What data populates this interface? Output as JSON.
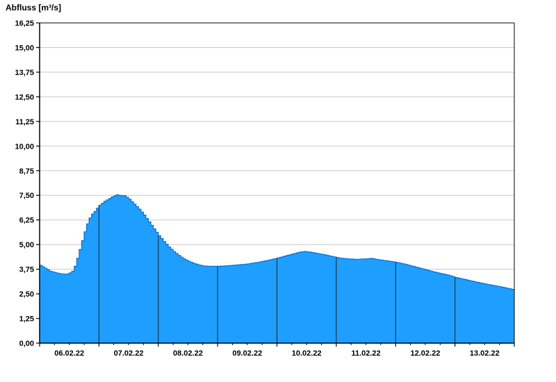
{
  "title": "Abfluss [m³/s]",
  "chart_data": {
    "type": "area",
    "title": "Abfluss [m³/s]",
    "ylabel": "Abfluss [m³/s]",
    "xlabel": "",
    "ylim": [
      0,
      16.25
    ],
    "ytick_step": 1.25,
    "grid": true,
    "legend": "none",
    "x_unit": "hours-from-2022-02-06T00:00",
    "xlim": [
      0,
      192
    ],
    "day_boundary_step_hours": 24,
    "x_day_labels": [
      "06.02.22",
      "07.02.22",
      "08.02.22",
      "09.02.22",
      "10.02.22",
      "11.02.22",
      "12.02.22",
      "13.02.22"
    ],
    "series": [
      {
        "name": "Abfluss",
        "points": [
          [
            0,
            3.95
          ],
          [
            2,
            3.8
          ],
          [
            4,
            3.65
          ],
          [
            6,
            3.58
          ],
          [
            8,
            3.52
          ],
          [
            10,
            3.5
          ],
          [
            11.5,
            3.52
          ],
          [
            13,
            3.65
          ],
          [
            14,
            3.9
          ],
          [
            15,
            4.3
          ],
          [
            16,
            4.75
          ],
          [
            17,
            5.2
          ],
          [
            18,
            5.65
          ],
          [
            19,
            6.05
          ],
          [
            20,
            6.35
          ],
          [
            21,
            6.55
          ],
          [
            22,
            6.68
          ],
          [
            23,
            6.85
          ],
          [
            24,
            7.0
          ],
          [
            25,
            7.1
          ],
          [
            26,
            7.2
          ],
          [
            27.5,
            7.3
          ],
          [
            29,
            7.42
          ],
          [
            30.5,
            7.5
          ],
          [
            31.5,
            7.55
          ],
          [
            32.5,
            7.45
          ],
          [
            33.5,
            7.52
          ],
          [
            34.5,
            7.45
          ],
          [
            36,
            7.3
          ],
          [
            38,
            7.05
          ],
          [
            40,
            6.8
          ],
          [
            42,
            6.5
          ],
          [
            44,
            6.15
          ],
          [
            46,
            5.8
          ],
          [
            48,
            5.45
          ],
          [
            50,
            5.15
          ],
          [
            52,
            4.88
          ],
          [
            54,
            4.65
          ],
          [
            56,
            4.45
          ],
          [
            58,
            4.28
          ],
          [
            60,
            4.15
          ],
          [
            62,
            4.05
          ],
          [
            64,
            3.97
          ],
          [
            66,
            3.92
          ],
          [
            68,
            3.9
          ],
          [
            72,
            3.9
          ],
          [
            76,
            3.93
          ],
          [
            80,
            3.97
          ],
          [
            84,
            4.02
          ],
          [
            88,
            4.1
          ],
          [
            92,
            4.2
          ],
          [
            96,
            4.32
          ],
          [
            99,
            4.42
          ],
          [
            102,
            4.52
          ],
          [
            105,
            4.62
          ],
          [
            107,
            4.65
          ],
          [
            109,
            4.62
          ],
          [
            112,
            4.55
          ],
          [
            115,
            4.48
          ],
          [
            118,
            4.4
          ],
          [
            121,
            4.32
          ],
          [
            124,
            4.28
          ],
          [
            128,
            4.25
          ],
          [
            132,
            4.28
          ],
          [
            134,
            4.3
          ],
          [
            136,
            4.25
          ],
          [
            140,
            4.18
          ],
          [
            144,
            4.1
          ],
          [
            147,
            4.02
          ],
          [
            150,
            3.92
          ],
          [
            153,
            3.82
          ],
          [
            156,
            3.72
          ],
          [
            159,
            3.62
          ],
          [
            162,
            3.53
          ],
          [
            165,
            3.45
          ],
          [
            168,
            3.33
          ],
          [
            171,
            3.25
          ],
          [
            174,
            3.16
          ],
          [
            177,
            3.08
          ],
          [
            180,
            3.0
          ],
          [
            183,
            2.93
          ],
          [
            186,
            2.86
          ],
          [
            189,
            2.78
          ],
          [
            192,
            2.7
          ]
        ]
      }
    ],
    "colors": {
      "fill": "#1E9FFF",
      "outline": "#0A70D0",
      "day_line": "#202020",
      "gridline": "#C8C8C8",
      "frame": "#000000",
      "text": "#000000",
      "background": "#FFFFFF"
    },
    "decimal_separator": ","
  }
}
